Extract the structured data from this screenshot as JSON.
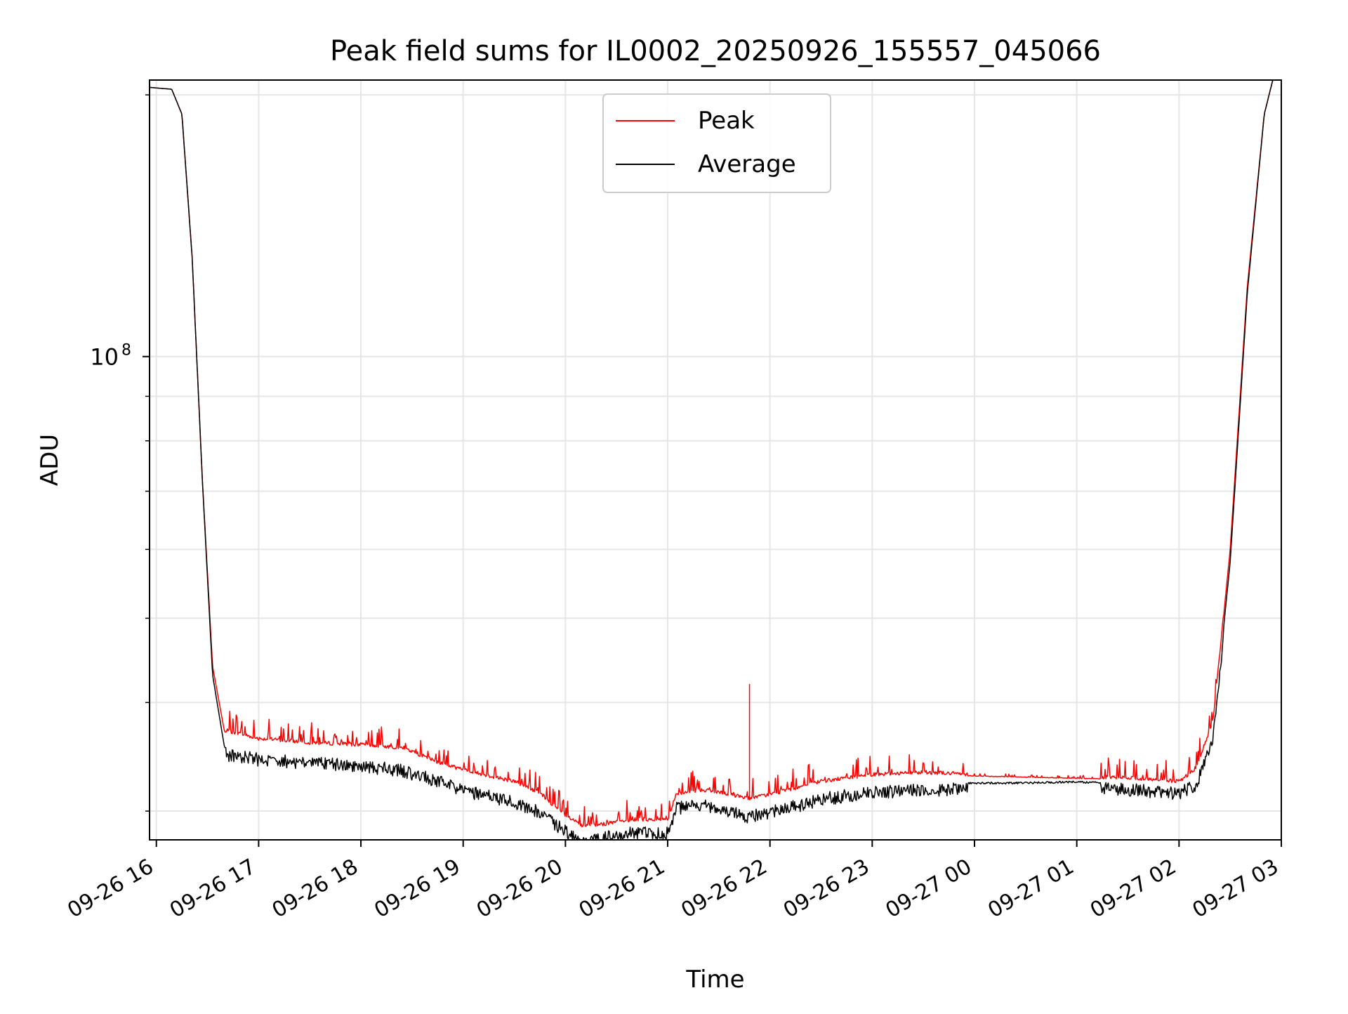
{
  "chart_data": {
    "type": "line",
    "title": "Peak field sums for IL0002_20250926_155557_045066",
    "xlabel": "Time",
    "ylabel": "ADU",
    "y_scale": "log",
    "ylim": [
      27800000,
      208000000
    ],
    "xlim": [
      "2025-09-26 15:56",
      "2025-09-27 03:00"
    ],
    "x_tick_labels": [
      "09-26 16",
      "09-26 17",
      "09-26 18",
      "09-26 19",
      "09-26 20",
      "09-26 21",
      "09-26 22",
      "09-26 23",
      "09-27 00",
      "09-27 01",
      "09-27 02",
      "09-27 03"
    ],
    "x_tick_times": [
      "2025-09-26 16:00",
      "2025-09-26 17:00",
      "2025-09-26 18:00",
      "2025-09-26 19:00",
      "2025-09-26 20:00",
      "2025-09-26 21:00",
      "2025-09-26 22:00",
      "2025-09-26 23:00",
      "2025-09-27 00:00",
      "2025-09-27 01:00",
      "2025-09-27 02:00",
      "2025-09-27 03:00"
    ],
    "y_tick_labels": [
      {
        "base": "10",
        "exp": "8"
      }
    ],
    "y_tick_values": [
      100000000
    ],
    "grid": true,
    "legend": {
      "location": "upper center",
      "entries": [
        "Peak",
        "Average"
      ]
    },
    "series": [
      {
        "name": "Peak",
        "color": "#ff0000",
        "x": [
          "2025-09-26 15:56",
          "2025-09-26 16:09",
          "2025-09-26 16:15",
          "2025-09-26 16:21",
          "2025-09-26 16:27",
          "2025-09-26 16:33",
          "2025-09-26 16:40",
          "2025-09-26 17:00",
          "2025-09-26 17:30",
          "2025-09-26 18:00",
          "2025-09-26 18:25",
          "2025-09-26 18:45",
          "2025-09-26 19:00",
          "2025-09-26 19:30",
          "2025-09-26 19:45",
          "2025-09-26 20:00",
          "2025-09-26 20:10",
          "2025-09-26 20:20",
          "2025-09-26 20:40",
          "2025-09-26 21:00",
          "2025-09-26 21:05",
          "2025-09-26 21:20",
          "2025-09-26 21:40",
          "2025-09-26 21:48",
          "2025-09-26 22:00",
          "2025-09-26 22:30",
          "2025-09-26 23:00",
          "2025-09-26 23:30",
          "2025-09-27 00:00",
          "2025-09-27 00:30",
          "2025-09-27 01:00",
          "2025-09-27 01:30",
          "2025-09-27 02:00",
          "2025-09-27 02:10",
          "2025-09-27 02:20",
          "2025-09-27 02:30",
          "2025-09-27 02:40",
          "2025-09-27 02:50",
          "2025-09-27 02:55"
        ],
        "y": [
          204000000,
          203000000,
          190000000,
          130000000,
          72000000,
          44000000,
          37000000,
          36200000,
          35800000,
          35600000,
          35300000,
          34000000,
          33300000,
          32300000,
          31300000,
          29500000,
          28700000,
          28800000,
          29200000,
          29200000,
          31200000,
          31600000,
          31100000,
          30900000,
          31200000,
          32300000,
          32900000,
          33100000,
          32900000,
          32800000,
          32700000,
          32600000,
          32300000,
          33400000,
          38000000,
          60000000,
          120000000,
          190000000,
          208000000
        ],
        "transient_spikes": [
          {
            "x": "2025-09-26 21:48",
            "y": 42000000
          }
        ]
      },
      {
        "name": "Average",
        "color": "#000000",
        "x": [
          "2025-09-26 15:56",
          "2025-09-26 16:09",
          "2025-09-26 16:15",
          "2025-09-26 16:21",
          "2025-09-26 16:27",
          "2025-09-26 16:33",
          "2025-09-26 16:40",
          "2025-09-26 17:00",
          "2025-09-26 17:30",
          "2025-09-26 18:00",
          "2025-09-26 18:25",
          "2025-09-26 18:45",
          "2025-09-26 19:00",
          "2025-09-26 19:30",
          "2025-09-26 19:45",
          "2025-09-26 20:00",
          "2025-09-26 20:10",
          "2025-09-26 20:20",
          "2025-09-26 20:40",
          "2025-09-26 21:00",
          "2025-09-26 21:05",
          "2025-09-26 21:20",
          "2025-09-26 21:40",
          "2025-09-26 21:48",
          "2025-09-26 22:00",
          "2025-09-26 22:30",
          "2025-09-26 23:00",
          "2025-09-26 23:30",
          "2025-09-27 00:00",
          "2025-09-27 00:30",
          "2025-09-27 01:00",
          "2025-09-27 01:30",
          "2025-09-27 02:00",
          "2025-09-27 02:10",
          "2025-09-27 02:20",
          "2025-09-27 02:30",
          "2025-09-27 02:40",
          "2025-09-27 02:50",
          "2025-09-27 02:55"
        ],
        "y": [
          204000000,
          203000000,
          190000000,
          130000000,
          72000000,
          43000000,
          35500000,
          35000000,
          34700000,
          34400000,
          34000000,
          33000000,
          32200000,
          31300000,
          30400000,
          28900000,
          28000000,
          28400000,
          28800000,
          28800000,
          30800000,
          31000000,
          30300000,
          30100000,
          30400000,
          31500000,
          32100000,
          32300000,
          32400000,
          32400000,
          32500000,
          32300000,
          32000000,
          32700000,
          37000000,
          58000000,
          118000000,
          190000000,
          208000000
        ]
      }
    ]
  }
}
